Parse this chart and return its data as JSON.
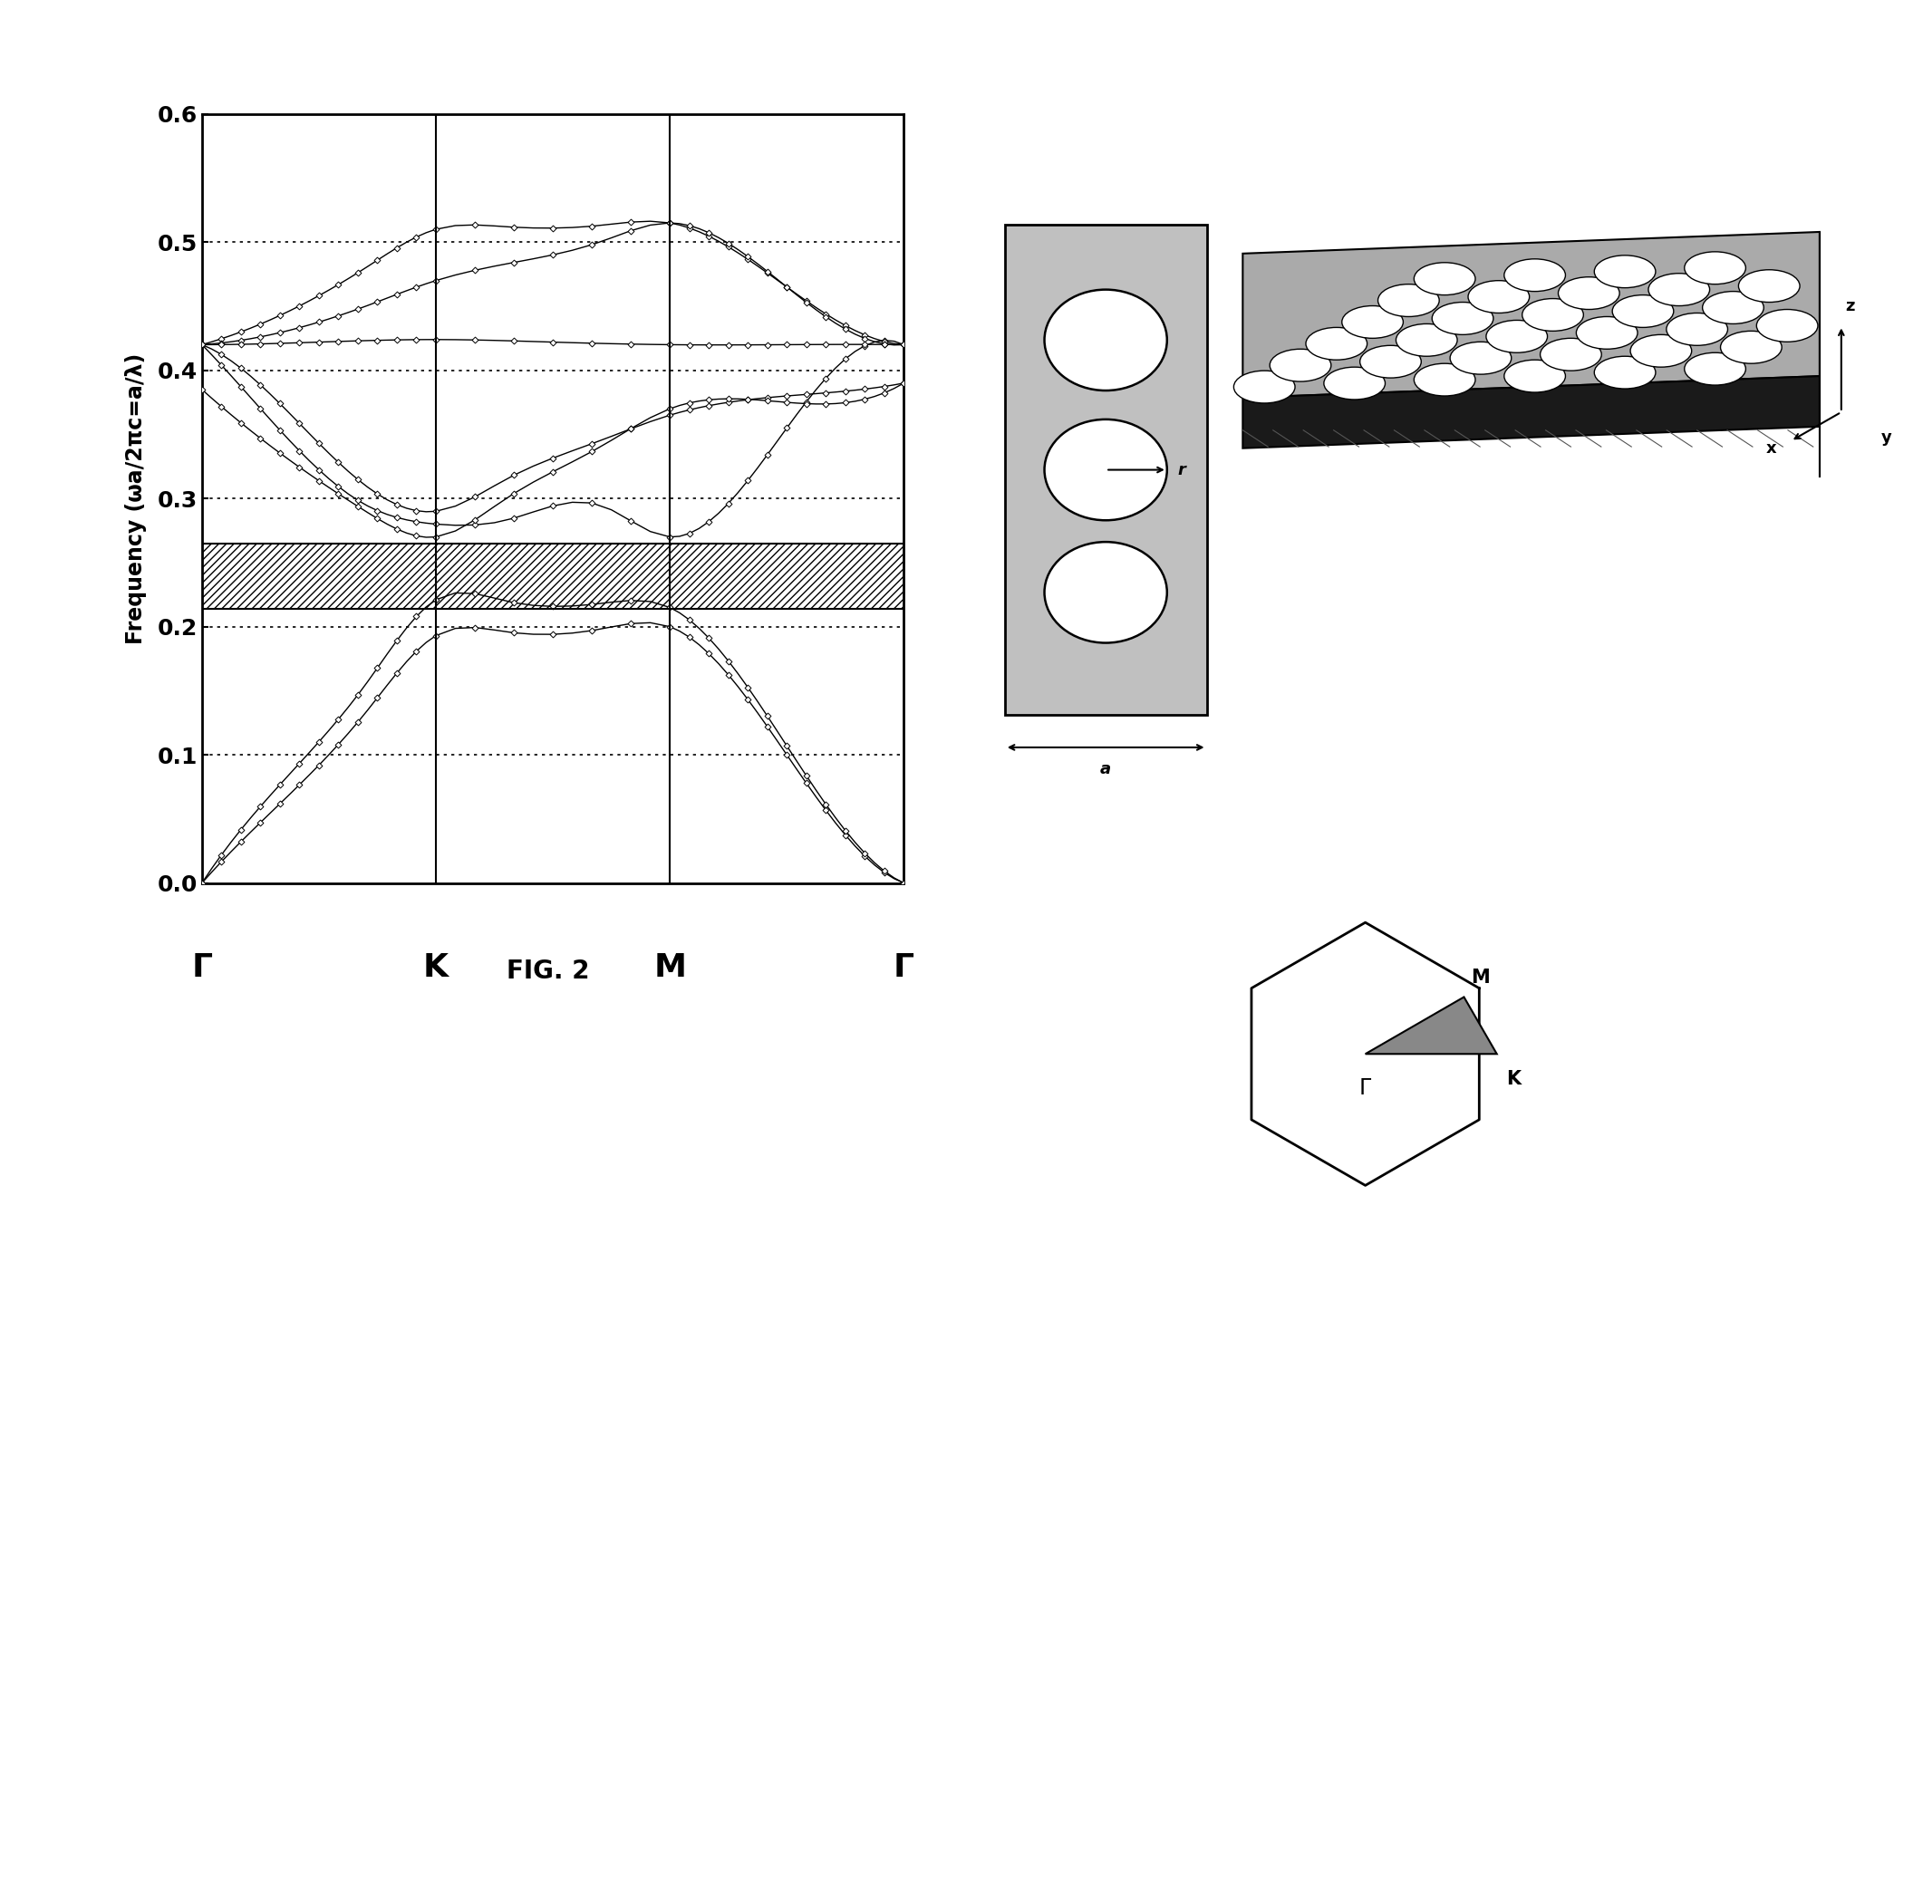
{
  "title": "FIG. 2",
  "ylabel": "Frequency (ωa/2πc=a/λ)",
  "ylim": [
    0.0,
    0.6
  ],
  "yticks": [
    0.0,
    0.1,
    0.2,
    0.3,
    0.4,
    0.5,
    0.6
  ],
  "dotted_lines": [
    0.1,
    0.2,
    0.3,
    0.4,
    0.5
  ],
  "bandgap_low": 0.214,
  "bandgap_high": 0.265,
  "kpoint_labels": [
    "Γ",
    "K",
    "M",
    "Γ"
  ],
  "n_gamma_k": 25,
  "n_k_m": 13,
  "n_m_gamma": 25,
  "marker_step": 1,
  "background_color": "#ffffff"
}
